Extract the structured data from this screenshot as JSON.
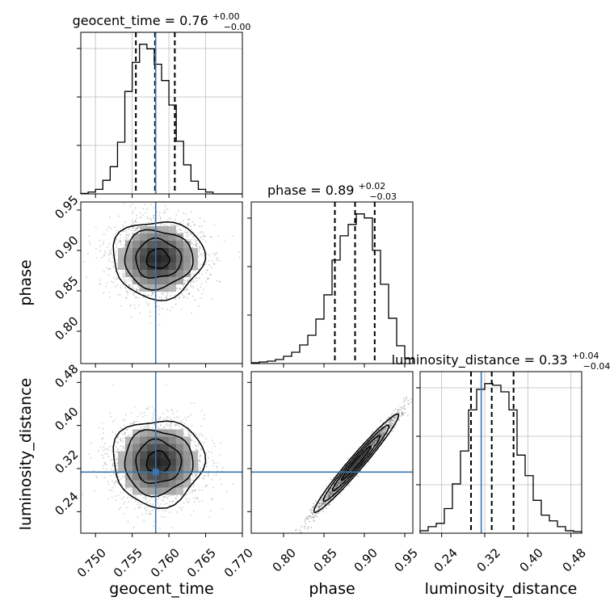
{
  "chart_data": [
    {
      "type": "histogram",
      "panel": "geocent_time-marginal",
      "title_main": "geocent_time = 0.76",
      "title_sup": "+0.00",
      "title_sub": "−0.00",
      "x_range": [
        0.748,
        0.77
      ],
      "bin_edges": [
        0.748,
        0.749,
        0.75,
        0.751,
        0.752,
        0.753,
        0.754,
        0.755,
        0.756,
        0.757,
        0.758,
        0.759,
        0.76,
        0.761,
        0.762,
        0.763,
        0.764,
        0.765,
        0.766,
        0.767,
        0.768,
        0.769,
        0.77
      ],
      "counts": [
        0.5,
        2,
        5,
        15,
        30,
        57,
        113,
        145,
        165,
        160,
        143,
        125,
        98,
        58,
        32,
        14,
        5,
        2,
        0,
        0,
        0,
        0
      ],
      "quantiles": [
        0.7555,
        0.7581,
        0.7608
      ],
      "truth": 0.7582,
      "grid": true
    },
    {
      "type": "histogram",
      "panel": "phase-marginal",
      "title_main": "phase = 0.89",
      "title_sup": "+0.02",
      "title_sub": "−0.03",
      "x_range": [
        0.76,
        0.96
      ],
      "bin_edges": [
        0.76,
        0.77,
        0.78,
        0.79,
        0.8,
        0.81,
        0.82,
        0.83,
        0.84,
        0.85,
        0.86,
        0.87,
        0.88,
        0.89,
        0.9,
        0.91,
        0.92,
        0.93,
        0.94,
        0.95,
        0.96
      ],
      "counts": [
        1,
        2,
        3,
        5,
        9,
        14,
        23,
        35,
        55,
        85,
        128,
        158,
        172,
        185,
        180,
        140,
        98,
        56,
        22,
        6
      ],
      "quantiles": [
        0.8635,
        0.8885,
        0.9128
      ]
    },
    {
      "type": "histogram",
      "panel": "luminosity_distance-marginal",
      "title_main": "luminosity_distance = 0.33",
      "title_sup": "+0.04",
      "title_sub": "−0.04",
      "x_range": [
        0.2,
        0.5
      ],
      "bin_edges": [
        0.2,
        0.215,
        0.23,
        0.245,
        0.26,
        0.275,
        0.29,
        0.305,
        0.32,
        0.335,
        0.35,
        0.365,
        0.38,
        0.395,
        0.41,
        0.425,
        0.44,
        0.455,
        0.47,
        0.485,
        0.5
      ],
      "counts": [
        3,
        8,
        12,
        30,
        60,
        100,
        150,
        175,
        182,
        180,
        172,
        150,
        95,
        70,
        40,
        22,
        15,
        8,
        3,
        2
      ],
      "quantiles": [
        0.2945,
        0.333,
        0.3735
      ],
      "truth": 0.3135,
      "grid": true
    },
    {
      "type": "scatter",
      "panel": "geocent_time-vs-phase",
      "x_range": [
        0.748,
        0.77
      ],
      "y_range": [
        0.76,
        0.96
      ],
      "ylabel": "phase",
      "yticks": [
        "0.80",
        "0.85",
        "0.90",
        "0.95"
      ],
      "center": [
        0.7585,
        0.8895
      ],
      "spread": [
        0.0031,
        0.024
      ],
      "truth_x": 0.7582
    },
    {
      "type": "scatter",
      "panel": "geocent_time-vs-luminosity_distance",
      "x_range": [
        0.748,
        0.77
      ],
      "y_range": [
        0.2,
        0.5
      ],
      "xlabel": "geocent_time",
      "ylabel": "luminosity_distance",
      "xticks": [
        "0.750",
        "0.755",
        "0.760",
        "0.765",
        "0.770"
      ],
      "yticks": [
        "0.24",
        "0.32",
        "0.40",
        "0.48"
      ],
      "center": [
        0.7585,
        0.332
      ],
      "spread": [
        0.0031,
        0.04
      ],
      "truth_x": 0.7582,
      "truth_y": 0.3135
    },
    {
      "type": "scatter",
      "panel": "phase-vs-luminosity_distance",
      "x_range": [
        0.76,
        0.96
      ],
      "y_range": [
        0.2,
        0.5
      ],
      "xlabel": "phase",
      "xticks": [
        "0.80",
        "0.85",
        "0.90",
        "0.95"
      ],
      "relation": "luminosity_distance ≈ 0.33 + 1.75 × (phase − 0.89)",
      "truth_y": 0.3135
    }
  ]
}
